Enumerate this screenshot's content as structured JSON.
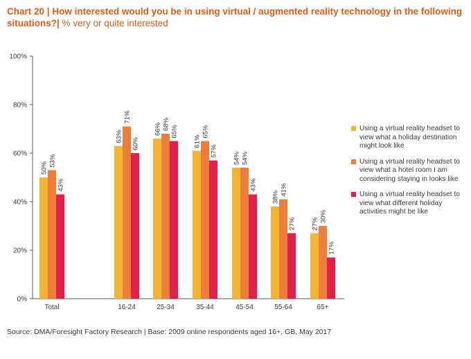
{
  "chart_title_label": "Chart 20 |",
  "chart_title": "How interested would you be in using virtual / augmented reality technology in the following situations?|",
  "chart_subtitle": "% very or quite interested",
  "source": "Source: DMA/Foresight Factory Research | Base: 2009 online respondents aged 16+, GB, May 2017",
  "chart_data": {
    "type": "bar",
    "categories": [
      "Total",
      "16-24",
      "25-34",
      "35-44",
      "45-54",
      "55-64",
      "65+"
    ],
    "ylim": [
      0,
      100
    ],
    "yticks": [
      "0%",
      "20%",
      "40%",
      "60%",
      "80%",
      "100%"
    ],
    "ytick_values": [
      0,
      20,
      40,
      60,
      80,
      100
    ],
    "grid": false,
    "legend_position": "right",
    "value_suffix": "%",
    "series": [
      {
        "name": "Using a virtual reality headset to view what a holiday destination might look like",
        "color": "#f3b52f",
        "values": [
          50,
          63,
          66,
          61,
          54,
          38,
          27
        ]
      },
      {
        "name": "Using a virtual reality headset to view what a hotel room I am considering staying in looks like",
        "color": "#ee7d3a",
        "values": [
          53,
          71,
          68,
          65,
          54,
          41,
          30
        ]
      },
      {
        "name": "Using a virtual reality headset to view what different holiday activities might be like",
        "color": "#e31f4b",
        "values": [
          43,
          60,
          65,
          57,
          43,
          27,
          17
        ]
      }
    ]
  }
}
